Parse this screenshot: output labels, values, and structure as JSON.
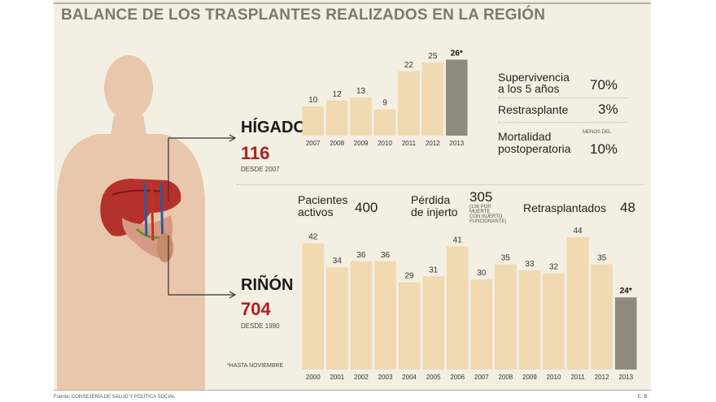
{
  "title": "BALANCE DE LOS TRASPLANTES REALIZADOS EN LA REGIÓN",
  "colors": {
    "bar": "#f1d9b2",
    "highlight_bar": "#8f8a7d",
    "accent_number": "#b01e22",
    "panel": "#f3efe2"
  },
  "higado": {
    "name": "HÍGADO",
    "number": "116",
    "since": "DESDE 2007",
    "stats": {
      "supervivencia_label_1": "Supervivencia",
      "supervivencia_label_2": "a los 5 años",
      "supervivencia_value": "70%",
      "restrasplante_label": "Restrasplante",
      "restrasplante_value": "3%",
      "mortalidad_label_1": "Mortalidad",
      "mortalidad_label_2": "postoperatoria",
      "mortalidad_note": "MENOS DEL",
      "mortalidad_value": "10%"
    }
  },
  "rinon": {
    "name": "RIÑÓN",
    "number": "704",
    "since": "DESDE 1990",
    "stats": {
      "pacientes_label_1": "Pacientes",
      "pacientes_label_2": "activos",
      "pacientes_value": "400",
      "perdida_label_1": "Pérdida",
      "perdida_label_2": "de injerto",
      "perdida_value": "305",
      "perdida_note_1": "(136 POR",
      "perdida_note_2": "MUERTE",
      "perdida_note_3": "CON INJERTO",
      "perdida_note_4": "FUNCIONANTE)",
      "retrasplantados_label": "Retrasplantados",
      "retrasplantados_value": "48"
    }
  },
  "note": "*HASTA NOVIEMBRE",
  "footer": {
    "source": "Fuente: CONSEJERÍA DE SALUD Y POLÍTICA SOCIAL",
    "credit": "E. B."
  },
  "chart_data": [
    {
      "type": "bar",
      "title": "HÍGADO",
      "categories": [
        "2007",
        "2008",
        "2009",
        "2010",
        "2011",
        "2012",
        "2013"
      ],
      "values": [
        10,
        12,
        13,
        9,
        22,
        25,
        26
      ],
      "value_labels": [
        "10",
        "12",
        "13",
        "9",
        "22",
        "25",
        "26*"
      ],
      "highlight_index": 6
    },
    {
      "type": "bar",
      "title": "RIÑÓN",
      "categories": [
        "2000",
        "2001",
        "2002",
        "2003",
        "2004",
        "2005",
        "2006",
        "2007",
        "2008",
        "2009",
        "2010",
        "2011",
        "2012",
        "2013"
      ],
      "values": [
        42,
        34,
        36,
        36,
        29,
        31,
        41,
        30,
        35,
        33,
        32,
        44,
        35,
        24
      ],
      "value_labels": [
        "42",
        "34",
        "36",
        "36",
        "29",
        "31",
        "41",
        "30",
        "35",
        "33",
        "32",
        "44",
        "35",
        "24*"
      ],
      "highlight_index": 13
    }
  ]
}
